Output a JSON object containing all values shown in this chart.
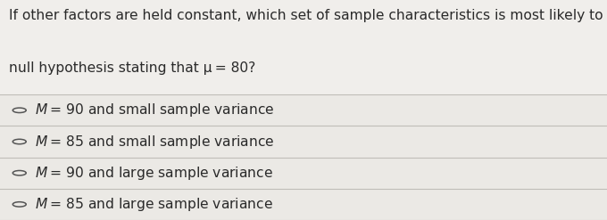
{
  "question_line1": "If other factors are held constant, which set of sample characteristics is most likely to reject a",
  "question_line2": "null hypothesis stating that μ = 80?",
  "options": [
    "M = 90 and small sample variance",
    "M = 85 and small sample variance",
    "M = 90 and large sample variance",
    "M = 85 and large sample variance"
  ],
  "bg_color": "#f0eeeb",
  "question_area_color": "#f0eeeb",
  "option_bg_color": "#ebe9e5",
  "divider_color": "#c0bdb8",
  "text_color": "#2a2a2a",
  "circle_color": "#555555",
  "question_fontsize": 11.2,
  "option_fontsize": 11.2,
  "fig_width": 6.8,
  "fig_height": 2.47,
  "dpi": 100
}
